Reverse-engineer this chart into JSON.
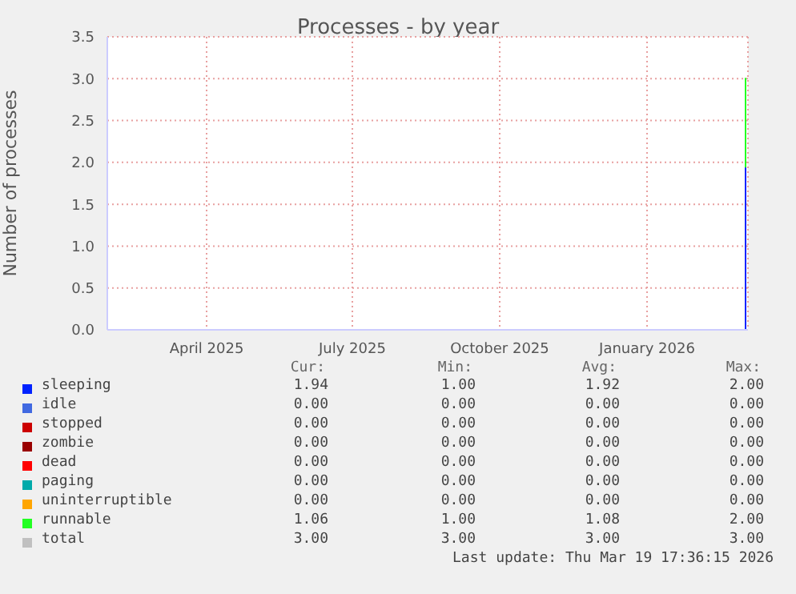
{
  "chart_data": {
    "type": "area",
    "stacked": true,
    "title": "Processes - by year",
    "ylabel": "Number of processes",
    "xlim": [
      "2025-02-13",
      "2026-03-20"
    ],
    "xticks": [
      {
        "value": "2025-04-16",
        "label": "April 2025"
      },
      {
        "value": "2025-07-16",
        "label": "July 2025"
      },
      {
        "value": "2025-10-16",
        "label": "October 2025"
      },
      {
        "value": "2026-01-16",
        "label": "January 2026"
      }
    ],
    "ylim": [
      0,
      3.5
    ],
    "yticks": [
      {
        "value": 0,
        "label": "0.0"
      },
      {
        "value": 0.5,
        "label": "0.5"
      },
      {
        "value": 1,
        "label": "1.0"
      },
      {
        "value": 1.5,
        "label": "1.5"
      },
      {
        "value": 2,
        "label": "2.0"
      },
      {
        "value": 2.5,
        "label": "2.5"
      },
      {
        "value": 3,
        "label": "3.0"
      },
      {
        "value": 3.5,
        "label": "3.5"
      }
    ],
    "x": [
      "2026-03-18",
      "2026-03-19"
    ],
    "series": [
      {
        "name": "sleeping",
        "color": "#0022ff",
        "values": [
          1.94,
          1.94
        ]
      },
      {
        "name": "idle",
        "color": "#4169e1",
        "values": [
          null,
          null
        ]
      },
      {
        "name": "stopped",
        "color": "#cc0000",
        "values": [
          null,
          null
        ]
      },
      {
        "name": "zombie",
        "color": "#990000",
        "values": [
          null,
          null
        ]
      },
      {
        "name": "dead",
        "color": "#ff0000",
        "values": [
          null,
          null
        ]
      },
      {
        "name": "paging",
        "color": "#00aaaa",
        "values": [
          null,
          null
        ]
      },
      {
        "name": "uninterruptible",
        "color": "#ffa500",
        "values": [
          null,
          null
        ]
      },
      {
        "name": "runnable",
        "color": "#22ff22",
        "values": [
          1.06,
          1.06
        ]
      },
      {
        "name": "total",
        "color": "#c0c0c0",
        "values": [
          null,
          null
        ]
      }
    ],
    "annotations": [
      "Cur:",
      "Min:",
      "Avg:",
      "Max:",
      "1.94",
      "1.00",
      "1.92",
      "2.00",
      "0.00",
      "0.00",
      "0.00",
      "0.00",
      "0.00",
      "0.00",
      "0.00",
      "0.00",
      "0.00",
      "0.00",
      "0.00",
      "0.00",
      "0.00",
      "0.00",
      "0.00",
      "0.00",
      "0.00",
      "0.00",
      "0.00",
      "0.00",
      "0.00",
      "0.00",
      "0.00",
      "0.00",
      "1.06",
      "1.00",
      "1.08",
      "2.00",
      "3.00",
      "3.00",
      "3.00",
      "3.00",
      "Last update: Thu Mar 19 17:36:15 2026"
    ],
    "grid": true,
    "legend": "bottom"
  }
}
